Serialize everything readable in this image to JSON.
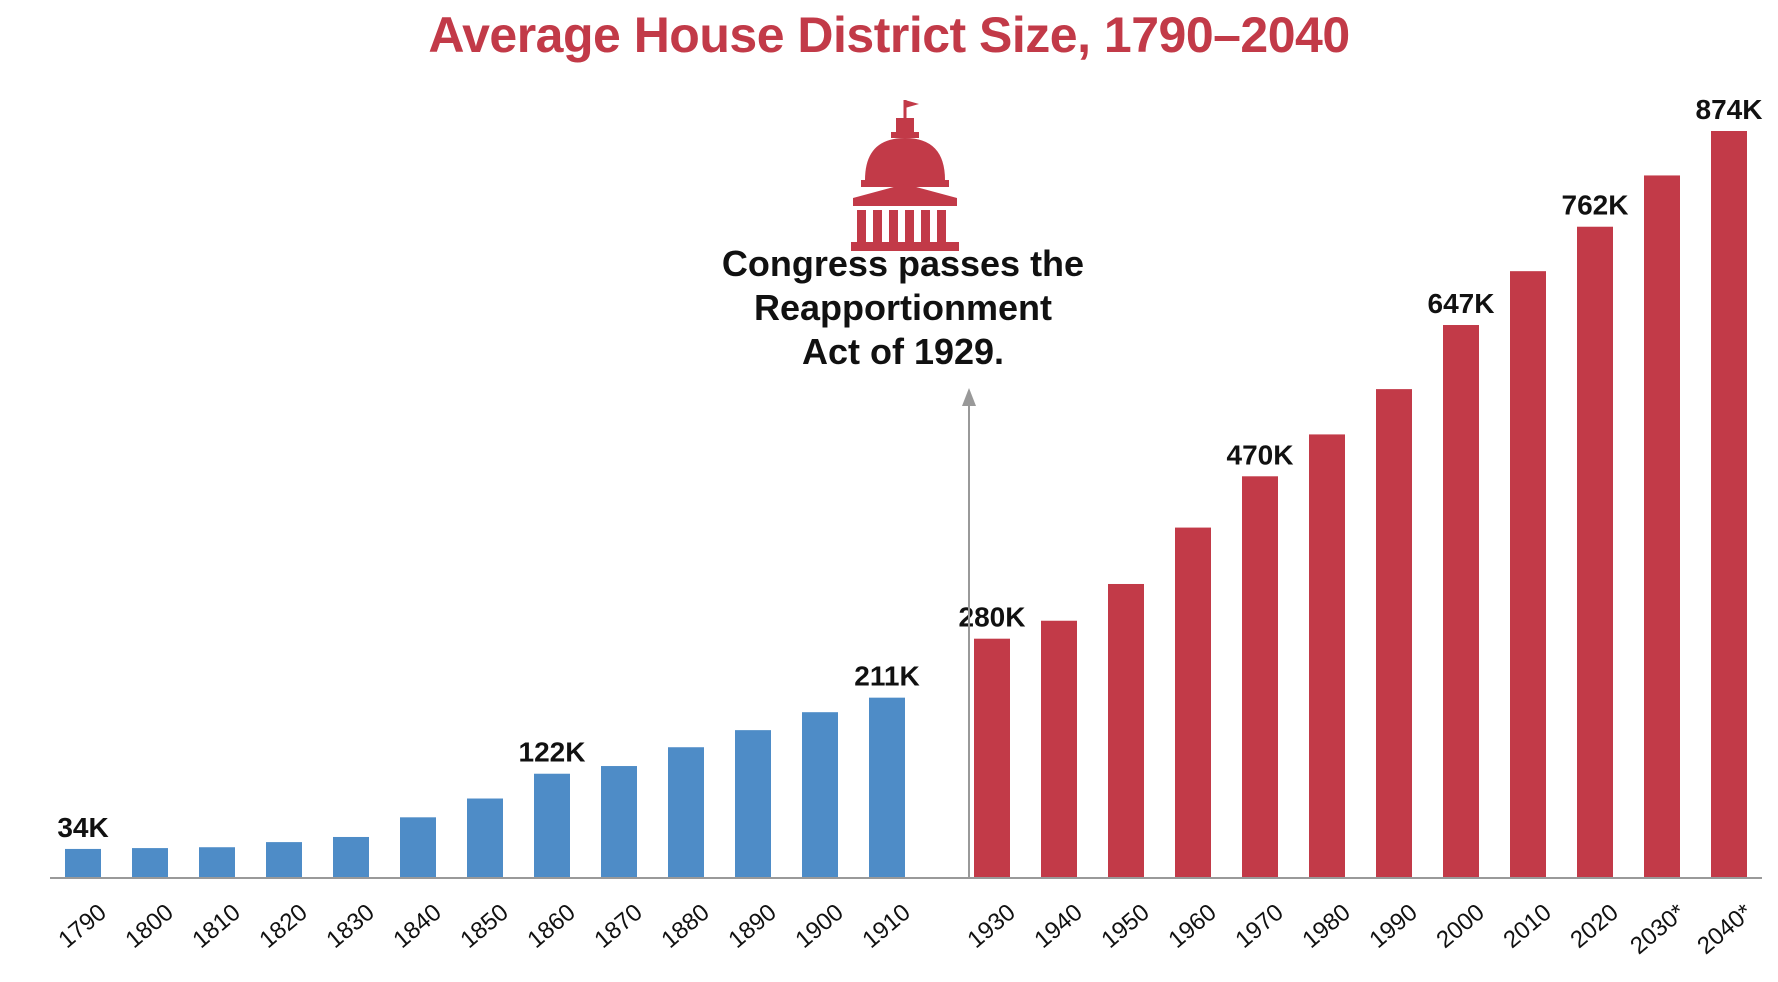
{
  "chart_data": {
    "type": "bar",
    "title": "Average House District Size, 1790–2040",
    "xlabel": "",
    "ylabel": "",
    "ylim": [
      0,
      1000000
    ],
    "colors": {
      "before": "#4e8cc7",
      "after": "#c23a48",
      "title": "#c23a48",
      "capitol": "#c23a48",
      "arrow": "#999999"
    },
    "grid": false,
    "legend": "none",
    "categories": [
      "1790",
      "1800",
      "1810",
      "1820",
      "1830",
      "1840",
      "1850",
      "1860",
      "1870",
      "1880",
      "1890",
      "1900",
      "1910",
      "1930",
      "1940",
      "1950",
      "1960",
      "1970",
      "1980",
      "1990",
      "2000",
      "2010",
      "2020",
      "2030*",
      "2040*"
    ],
    "values": [
      34000,
      35000,
      36000,
      42000,
      48000,
      71000,
      93000,
      122000,
      131000,
      153000,
      173000,
      194000,
      211000,
      280000,
      301000,
      344000,
      410000,
      470000,
      519000,
      572000,
      647000,
      710000,
      762000,
      822000,
      874000
    ],
    "groups": [
      "before",
      "before",
      "before",
      "before",
      "before",
      "before",
      "before",
      "before",
      "before",
      "before",
      "before",
      "before",
      "before",
      "after",
      "after",
      "after",
      "after",
      "after",
      "after",
      "after",
      "after",
      "after",
      "after",
      "after",
      "after"
    ],
    "data_labels": [
      "34K",
      "",
      "",
      "",
      "",
      "",
      "",
      "122K",
      "",
      "",
      "",
      "",
      "211K",
      "280K",
      "",
      "",
      "",
      "470K",
      "",
      "",
      "647K",
      "",
      "762K",
      "",
      "874K"
    ],
    "annotation": {
      "lines": [
        "Congress passes the",
        "Reapportionment",
        "Act of 1929."
      ],
      "icon": "capitol-icon"
    }
  }
}
